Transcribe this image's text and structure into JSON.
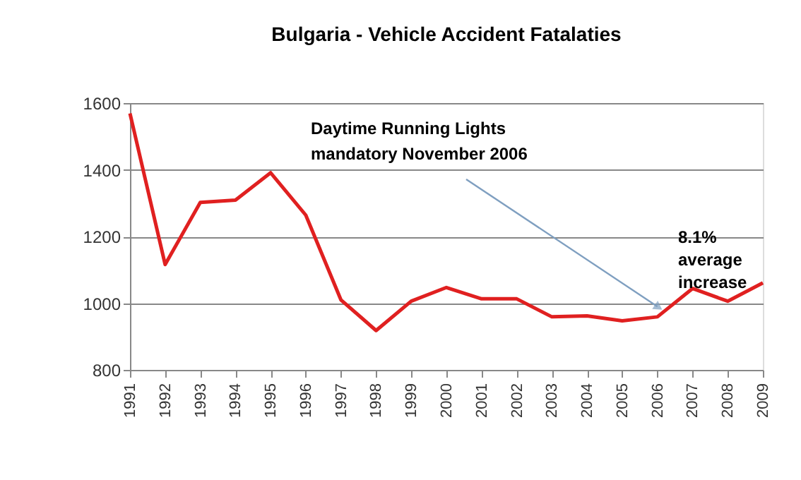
{
  "chart_data": {
    "type": "line",
    "title": "Bulgaria - Vehicle Accident Fatalaties",
    "categories": [
      "1991",
      "1992",
      "1993",
      "1994",
      "1995",
      "1996",
      "1997",
      "1998",
      "1999",
      "2000",
      "2001",
      "2002",
      "2003",
      "2004",
      "2005",
      "2006",
      "2007",
      "2008",
      "2009"
    ],
    "series": [
      {
        "color": "#e02020",
        "values": [
          1569,
          1116,
          1302,
          1309,
          1391,
          1264,
          1010,
          918,
          1006,
          1047,
          1013,
          1013,
          959,
          962,
          947,
          959,
          1044,
          1006,
          1061
        ]
      }
    ],
    "ylim": [
      800,
      1600
    ],
    "yticks": [
      800,
      1000,
      1200,
      1400,
      1600
    ],
    "grid": "y",
    "marker": "none",
    "annotations": [
      {
        "text": "Daytime Running Lights\nmandatory November 2006",
        "x": "2006",
        "y": 990
      },
      "8.1%\naverage\nincrease"
    ]
  }
}
